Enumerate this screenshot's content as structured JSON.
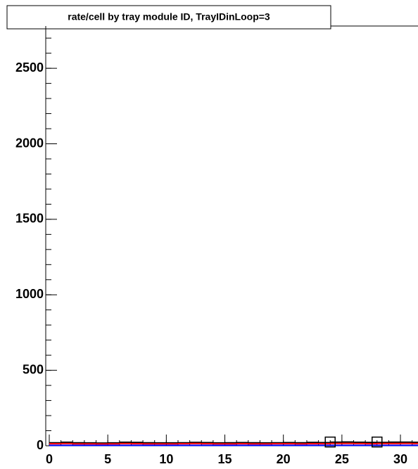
{
  "chart_data": {
    "type": "histogram",
    "title": "rate/cell by tray module ID, TrayIDinLoop=3",
    "bins": [
      0,
      1,
      2,
      3,
      4,
      5,
      6,
      7,
      8,
      9,
      10,
      11,
      12,
      13,
      14,
      15,
      16,
      17,
      18,
      19,
      20,
      21,
      22,
      23,
      24,
      25,
      26,
      27,
      28,
      29,
      30,
      31,
      32
    ],
    "series": [
      {
        "color": "#000000",
        "values": [
          20,
          23,
          20,
          19,
          18,
          19,
          23,
          22,
          20,
          19,
          19,
          20,
          22,
          21,
          19,
          20,
          21,
          20,
          19,
          20,
          21,
          20,
          22,
          21,
          24,
          25,
          23,
          22,
          22,
          24,
          24,
          23
        ]
      },
      {
        "color": "#ff0000",
        "values": [
          14,
          15,
          13,
          13,
          12,
          13,
          15,
          14,
          13,
          13,
          13,
          14,
          15,
          14,
          13,
          13,
          14,
          13,
          13,
          14,
          14,
          13,
          14,
          14,
          16,
          16,
          15,
          14,
          15,
          15,
          16,
          15
        ]
      },
      {
        "color": "#0000ff",
        "values": [
          3,
          3,
          3,
          3,
          3,
          3,
          3,
          3,
          3,
          3,
          3,
          3,
          3,
          3,
          3,
          3,
          3,
          3,
          3,
          3,
          3,
          3,
          3,
          3,
          3,
          3,
          3,
          3,
          3,
          3,
          3,
          3
        ]
      }
    ],
    "markers": {
      "color": "#000000",
      "x": [
        24,
        28
      ],
      "values": [
        25,
        25
      ]
    },
    "xlim": [
      -0.3,
      31.5
    ],
    "xticks": [
      0,
      5,
      10,
      15,
      20,
      25,
      30
    ],
    "ylim": [
      0,
      2780
    ],
    "yticks": [
      0,
      500,
      1000,
      1500,
      2000,
      2500
    ]
  }
}
